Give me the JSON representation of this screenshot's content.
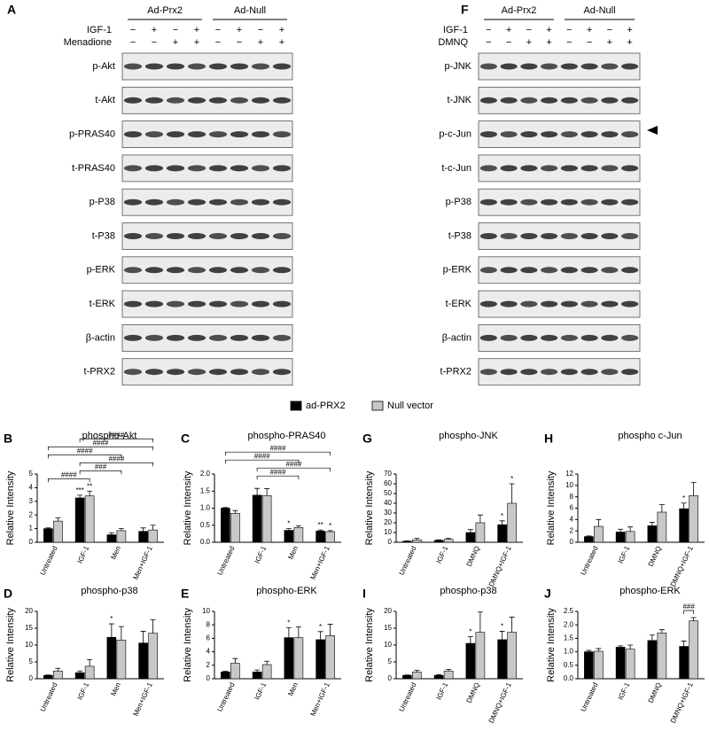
{
  "blots": [
    {
      "letter": "A",
      "groups": [
        "Ad-Prx2",
        "Ad-Null"
      ],
      "treatments": [
        {
          "name": "IGF-1",
          "signs": [
            "−",
            "+",
            "−",
            "+",
            "−",
            "+",
            "−",
            "+"
          ]
        },
        {
          "name": "Menadione",
          "signs": [
            "−",
            "−",
            "+",
            "+",
            "−",
            "−",
            "+",
            "+"
          ]
        }
      ],
      "rows": [
        "p-Akt",
        "t-Akt",
        "p-PRAS40",
        "t-PRAS40",
        "p-P38",
        "t-P38",
        "p-ERK",
        "t-ERK",
        "β-actin",
        "t-PRX2"
      ]
    },
    {
      "letter": "F",
      "groups": [
        "Ad-Prx2",
        "Ad-Null"
      ],
      "treatments": [
        {
          "name": "IGF-1",
          "signs": [
            "−",
            "+",
            "−",
            "+",
            "−",
            "+",
            "−",
            "+"
          ]
        },
        {
          "name": "DMNQ",
          "signs": [
            "−",
            "−",
            "+",
            "+",
            "−",
            "−",
            "+",
            "+"
          ]
        }
      ],
      "rows": [
        "p-JNK",
        "t-JNK",
        "p-c-Jun",
        "t-c-Jun",
        "p-P38",
        "t-P38",
        "p-ERK",
        "t-ERK",
        "β-actin",
        "t-PRX2"
      ]
    }
  ],
  "legend": [
    {
      "name": "ad-PRX2",
      "color": "#000000"
    },
    {
      "name": "Null vector",
      "color": "#c8c8c8"
    }
  ],
  "chart_data": [
    {
      "type": "bar",
      "letter": "B",
      "title": "phospho-Akt",
      "ylabel": "Relative Intensity",
      "categories": [
        "Untreated",
        "IGF-1",
        "Men",
        "Men+IGF-1"
      ],
      "series": [
        {
          "color": "#000000",
          "values": [
            1.0,
            3.25,
            0.55,
            0.8
          ],
          "errors": [
            0.05,
            0.2,
            0.15,
            0.25
          ]
        },
        {
          "color": "#c8c8c8",
          "values": [
            1.55,
            3.4,
            0.85,
            0.9
          ],
          "errors": [
            0.25,
            0.35,
            0.15,
            0.35
          ]
        }
      ],
      "ylim": [
        0,
        5
      ],
      "yticks": [
        0,
        1,
        2,
        3,
        4,
        5
      ],
      "stars": [
        {
          "text": "***",
          "category": 1,
          "series": 0
        },
        {
          "text": "**",
          "category": 1,
          "series": 1
        }
      ],
      "brackets": [
        {
          "label": "####",
          "from": 0,
          "to": 1
        },
        {
          "label": "###",
          "from": 1,
          "to": 2
        },
        {
          "label": "####",
          "from": 1,
          "to": 3
        },
        {
          "label": "####",
          "from": 0,
          "to": 2
        },
        {
          "label": "####",
          "from": 0,
          "to": 3
        },
        {
          "label": "####",
          "from": 1,
          "to": 3
        }
      ]
    },
    {
      "type": "bar",
      "letter": "C",
      "title": "phospho-PRAS40",
      "ylabel": "Relative Intensity",
      "categories": [
        "Untreated",
        "IGF-1",
        "Men",
        "Men+IGF-1"
      ],
      "series": [
        {
          "color": "#000000",
          "values": [
            1.0,
            1.38,
            0.35,
            0.33
          ],
          "errors": [
            0.02,
            0.2,
            0.05,
            0.03
          ]
        },
        {
          "color": "#c8c8c8",
          "values": [
            0.85,
            1.37,
            0.43,
            0.31
          ],
          "errors": [
            0.08,
            0.2,
            0.05,
            0.03
          ]
        }
      ],
      "ylim": [
        0,
        2
      ],
      "yticks": [
        {
          "value": 0,
          "label": "0.0"
        },
        0.5,
        {
          "value": 1,
          "label": "1.0"
        },
        1.5,
        {
          "value": 2,
          "label": "2.0"
        }
      ],
      "stars": [
        {
          "text": "*",
          "category": 2,
          "series": 0
        },
        {
          "text": "**",
          "category": 3,
          "series": 0
        },
        {
          "text": "*",
          "category": 3,
          "series": 1
        }
      ],
      "brackets": [
        {
          "label": "####",
          "from": 1,
          "to": 2
        },
        {
          "label": "####",
          "from": 1,
          "to": 3
        },
        {
          "label": "####",
          "from": 0,
          "to": 2
        },
        {
          "label": "####",
          "from": 0,
          "to": 3
        }
      ]
    },
    {
      "type": "bar",
      "letter": "G",
      "title": "phospho-JNK",
      "ylabel": "Relative Intensity",
      "categories": [
        "Untreated",
        "IGF-1",
        "DMNQ",
        "DMNQ+IGF-1"
      ],
      "series": [
        {
          "color": "#000000",
          "values": [
            1,
            2,
            10,
            18
          ],
          "errors": [
            0.5,
            0.5,
            3,
            4
          ]
        },
        {
          "color": "#c8c8c8",
          "values": [
            2.5,
            3,
            20,
            40
          ],
          "errors": [
            1.5,
            1,
            8,
            20
          ]
        }
      ],
      "ylim": [
        0,
        70
      ],
      "yticks": [
        0,
        10,
        20,
        30,
        40,
        50,
        60,
        70
      ],
      "stars": [
        {
          "text": "*",
          "category": 3,
          "series": 0
        },
        {
          "text": "*",
          "category": 3,
          "series": 1
        }
      ],
      "brackets": []
    },
    {
      "type": "bar",
      "letter": "H",
      "title": "phospho c-Jun",
      "ylabel": "Relative Intensity",
      "categories": [
        "Untreated",
        "IGF-1",
        "DMNQ",
        "DMNQ+IGF-1"
      ],
      "series": [
        {
          "color": "#000000",
          "values": [
            1,
            1.8,
            2.9,
            5.9
          ],
          "errors": [
            0.1,
            0.5,
            0.6,
            1
          ]
        },
        {
          "color": "#c8c8c8",
          "values": [
            2.8,
            1.9,
            5.3,
            8.2
          ],
          "errors": [
            1.2,
            0.8,
            1.3,
            2.3
          ]
        }
      ],
      "ylim": [
        0,
        12
      ],
      "yticks": [
        0,
        2,
        4,
        6,
        8,
        10,
        12
      ],
      "stars": [
        {
          "text": "*",
          "category": 3,
          "series": 0
        }
      ],
      "brackets": []
    },
    {
      "type": "bar",
      "letter": "D",
      "title": "phospho-p38",
      "ylabel": "Relative Intensity",
      "categories": [
        "Untreated",
        "IGF-1",
        "Men",
        "Men+IGF-1"
      ],
      "series": [
        {
          "color": "#000000",
          "values": [
            1,
            1.8,
            12.3,
            10.6
          ],
          "errors": [
            0.1,
            0.5,
            4,
            3.5
          ]
        },
        {
          "color": "#c8c8c8",
          "values": [
            2.3,
            3.7,
            11.5,
            13.5
          ],
          "errors": [
            0.8,
            2,
            4,
            4
          ]
        }
      ],
      "ylim": [
        0,
        20
      ],
      "yticks": [
        0,
        5,
        10,
        15,
        20
      ],
      "stars": [
        {
          "text": "*",
          "category": 2,
          "series": 0
        }
      ],
      "brackets": []
    },
    {
      "type": "bar",
      "letter": "E",
      "title": "phospho-ERK",
      "ylabel": "Relative Intensity",
      "categories": [
        "Untreated",
        "IGF-1",
        "Men",
        "Men+IGF-1"
      ],
      "series": [
        {
          "color": "#000000",
          "values": [
            1,
            1,
            6.1,
            5.8
          ],
          "errors": [
            0.1,
            0.3,
            1.5,
            1.2
          ]
        },
        {
          "color": "#c8c8c8",
          "values": [
            2.3,
            2.1,
            6.1,
            6.4
          ],
          "errors": [
            0.7,
            0.5,
            1.6,
            1.7
          ]
        }
      ],
      "ylim": [
        0,
        10
      ],
      "yticks": [
        0,
        2,
        4,
        6,
        8,
        10
      ],
      "stars": [
        {
          "text": "*",
          "category": 2,
          "series": 0
        },
        {
          "text": "*",
          "category": 3,
          "series": 0
        }
      ],
      "brackets": []
    },
    {
      "type": "bar",
      "letter": "I",
      "title": "phospho-p38",
      "ylabel": "Relative Intensity",
      "categories": [
        "Untreated",
        "IGF-1",
        "DMNQ",
        "DMNQ+IGF-1"
      ],
      "series": [
        {
          "color": "#000000",
          "values": [
            1,
            1,
            10.5,
            11.6
          ],
          "errors": [
            0.1,
            0.2,
            2,
            2.5
          ]
        },
        {
          "color": "#c8c8c8",
          "values": [
            2,
            2.3,
            13.8,
            13.8
          ],
          "errors": [
            0.5,
            0.5,
            6,
            4.5
          ]
        }
      ],
      "ylim": [
        0,
        20
      ],
      "yticks": [
        0,
        5,
        10,
        15,
        20
      ],
      "stars": [
        {
          "text": "*",
          "category": 2,
          "series": 0
        },
        {
          "text": "*",
          "category": 3,
          "series": 0
        }
      ],
      "brackets": []
    },
    {
      "type": "bar",
      "letter": "J",
      "title": "phospho-ERK",
      "ylabel": "Relative Intensity",
      "categories": [
        "Untreated",
        "IGF-1",
        "DMNQ",
        "DMNQ+IGF-1"
      ],
      "series": [
        {
          "color": "#000000",
          "values": [
            1,
            1.17,
            1.42,
            1.2
          ],
          "errors": [
            0.05,
            0.05,
            0.2,
            0.2
          ]
        },
        {
          "color": "#c8c8c8",
          "values": [
            1.02,
            1.1,
            1.7,
            2.15
          ],
          "errors": [
            0.1,
            0.15,
            0.12,
            0.12
          ]
        }
      ],
      "ylim": [
        0,
        2.5
      ],
      "yticks": [
        {
          "value": 0,
          "label": "0.0"
        },
        0.5,
        {
          "value": 1,
          "label": "1.0"
        },
        1.5,
        {
          "value": 2,
          "label": "2.0"
        },
        2.5
      ],
      "stars": [],
      "brackets": [
        {
          "label": "###",
          "from": 3,
          "to": 3,
          "pair": true
        }
      ]
    }
  ]
}
